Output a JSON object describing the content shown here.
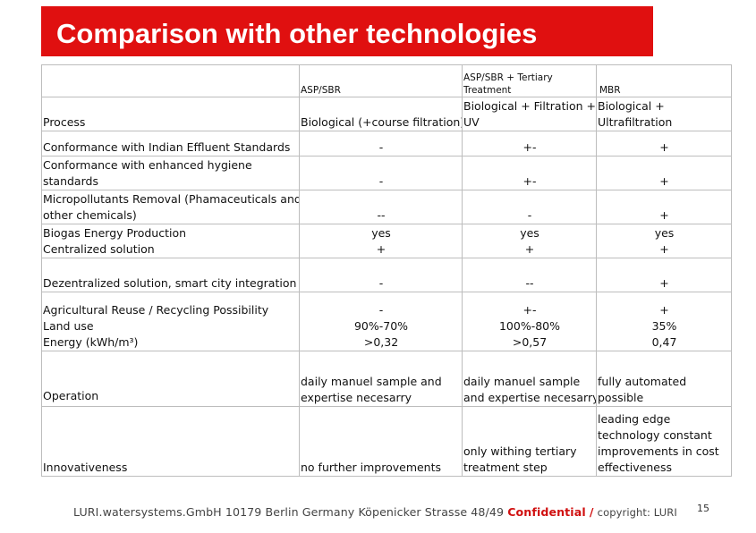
{
  "title": "Comparison with other technologies",
  "table": {
    "headers": {
      "asp_sbr": "ASP/SBR",
      "tertiary_line1": "ASP/SBR + Tertiary",
      "tertiary_line2": "Treatment",
      "mbr": "MBR"
    },
    "process": {
      "label": "Process",
      "asp_sbr": "Biological (+course filtration)",
      "tertiary_line1": "Biological + Filtration +",
      "tertiary_line2": "UV",
      "mbr_line1": "Biological +",
      "mbr_line2": "Ultrafiltration"
    },
    "rows": [
      {
        "label_lines": [
          "Conformance with Indian Effluent Standards"
        ],
        "asp_sbr": [
          "-"
        ],
        "tertiary": [
          "+-"
        ],
        "mbr": [
          "+"
        ]
      },
      {
        "label_lines": [
          "Conformance with enhanced hygiene",
          "standards"
        ],
        "asp_sbr": [
          "-"
        ],
        "tertiary": [
          "+-"
        ],
        "mbr": [
          "+"
        ]
      },
      {
        "label_lines": [
          "Micropollutants Removal (Phamaceuticals and",
          "other chemicals)"
        ],
        "asp_sbr": [
          "--"
        ],
        "tertiary": [
          "-"
        ],
        "mbr": [
          "+"
        ]
      },
      {
        "label_lines": [
          "Biogas Energy Production",
          "Centralized solution"
        ],
        "asp_sbr": [
          "yes",
          "+"
        ],
        "tertiary": [
          "yes",
          "+"
        ],
        "mbr": [
          "yes",
          "+"
        ]
      },
      {
        "label_lines": [
          "Dezentralized solution, smart city integration"
        ],
        "asp_sbr": [
          "-"
        ],
        "tertiary": [
          "--"
        ],
        "mbr": [
          "+"
        ]
      },
      {
        "label_lines": [
          "Agricultural Reuse / Recycling Possibility",
          "Land use",
          "Energy (kWh/m³)"
        ],
        "asp_sbr": [
          "-",
          "90%-70%",
          ">0,32"
        ],
        "tertiary": [
          "+-",
          "100%-80%",
          ">0,57"
        ],
        "mbr": [
          "+",
          "35%",
          "0,47"
        ]
      }
    ],
    "operation": {
      "label": "Operation",
      "asp_sbr": [
        "daily manuel sample and",
        "expertise necesarry"
      ],
      "tertiary": [
        "daily manuel sample",
        "and expertise necesarry"
      ],
      "mbr": [
        "fully automated",
        "possible"
      ]
    },
    "innovativeness": {
      "label": "Innovativeness",
      "asp_sbr": [
        "no further improvements"
      ],
      "tertiary": [
        "only withing tertiary",
        "treatment step"
      ],
      "mbr": [
        "leading edge",
        "technology   constant",
        "improvements in cost",
        "effectiveness"
      ]
    }
  },
  "footer": {
    "company": "LURI.watersystems.GmbH 10179 Berlin Germany Köpenicker Strasse 48/49",
    "confidential": "Confidential",
    "separator": "/",
    "copyright": "copyright: LURI",
    "page_number": "15"
  }
}
